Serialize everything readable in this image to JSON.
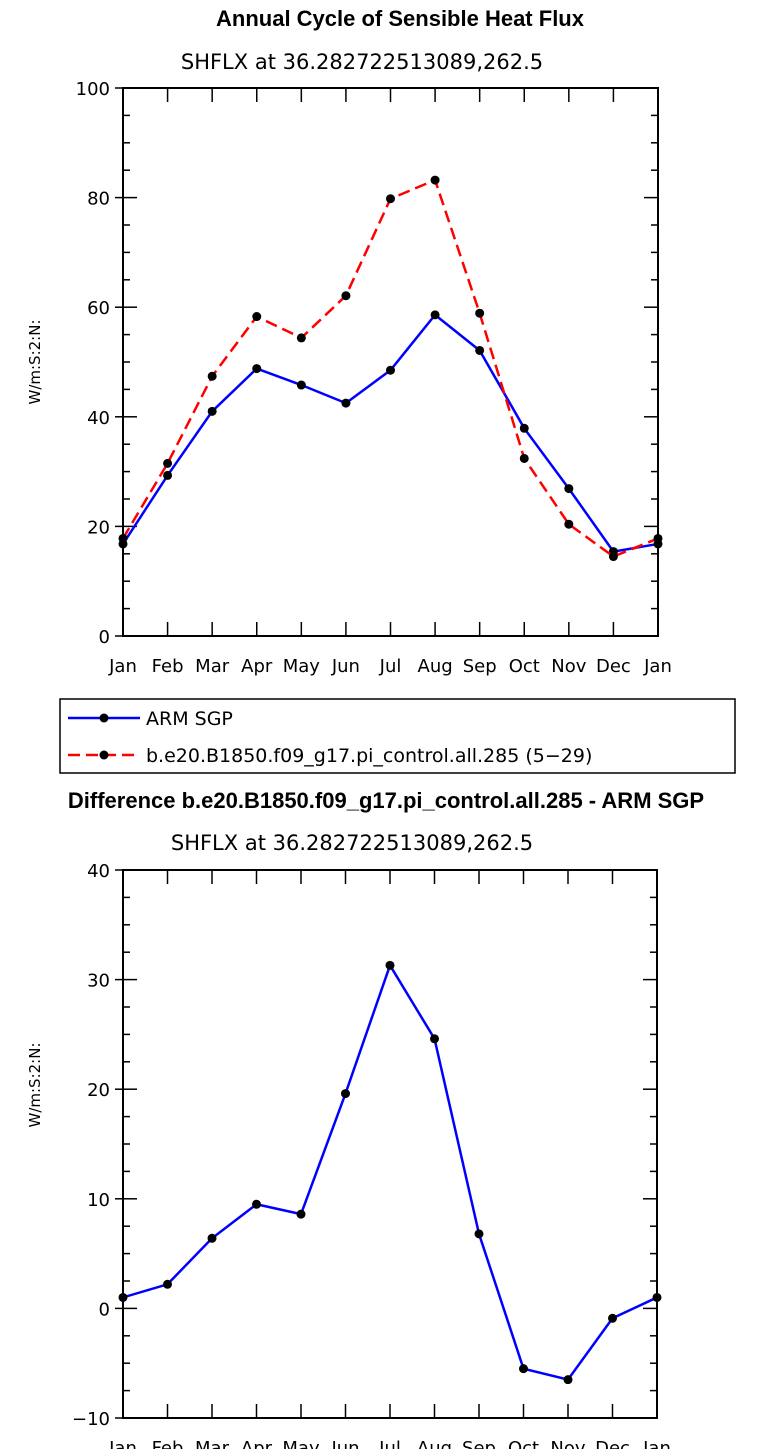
{
  "chart_data": [
    {
      "type": "line",
      "title": "Annual Cycle of Sensible Heat Flux",
      "subtitle": "SHFLX at 36.282722513089,262.5",
      "ylabel": "W/m:S:2:N:",
      "xlabel": "",
      "categories": [
        "Jan",
        "Feb",
        "Mar",
        "Apr",
        "May",
        "Jun",
        "Jul",
        "Aug",
        "Sep",
        "Oct",
        "Nov",
        "Dec",
        "Jan"
      ],
      "ylim": [
        0,
        100
      ],
      "yticks": [
        0,
        20,
        40,
        60,
        80,
        100
      ],
      "series": [
        {
          "name": "ARM SGP",
          "color": "#0000ff",
          "dash": "solid",
          "values": [
            16.8,
            29.3,
            41.0,
            48.8,
            45.8,
            42.5,
            48.5,
            58.6,
            52.1,
            37.9,
            26.9,
            15.4,
            16.8
          ]
        },
        {
          "name": "b.e20.B1850.f09_g17.pi_control.all.285 (5−29)",
          "color": "#ff0000",
          "dash": "dashed",
          "values": [
            17.8,
            31.5,
            47.4,
            58.3,
            54.4,
            62.1,
            79.8,
            83.2,
            58.9,
            32.4,
            20.4,
            14.5,
            17.8
          ]
        }
      ],
      "legend": "below"
    },
    {
      "type": "line",
      "title": "Difference b.e20.B1850.f09_g17.pi_control.all.285 - ARM SGP",
      "subtitle": "SHFLX at 36.282722513089,262.5",
      "ylabel": "W/m:S:2:N:",
      "xlabel": "",
      "categories": [
        "Jan",
        "Feb",
        "Mar",
        "Apr",
        "May",
        "Jun",
        "Jul",
        "Aug",
        "Sep",
        "Oct",
        "Nov",
        "Dec",
        "Jan"
      ],
      "ylim": [
        -10,
        40
      ],
      "yticks": [
        -10,
        0,
        10,
        20,
        30,
        40
      ],
      "ytick_labels": [
        "−10",
        "0",
        "10",
        "20",
        "30",
        "40"
      ],
      "series": [
        {
          "name": "Difference",
          "color": "#0000ff",
          "dash": "solid",
          "values": [
            1.0,
            2.2,
            6.4,
            9.5,
            8.6,
            19.6,
            31.3,
            24.6,
            6.8,
            -5.5,
            -6.5,
            -0.9,
            1.0
          ]
        }
      ]
    }
  ]
}
